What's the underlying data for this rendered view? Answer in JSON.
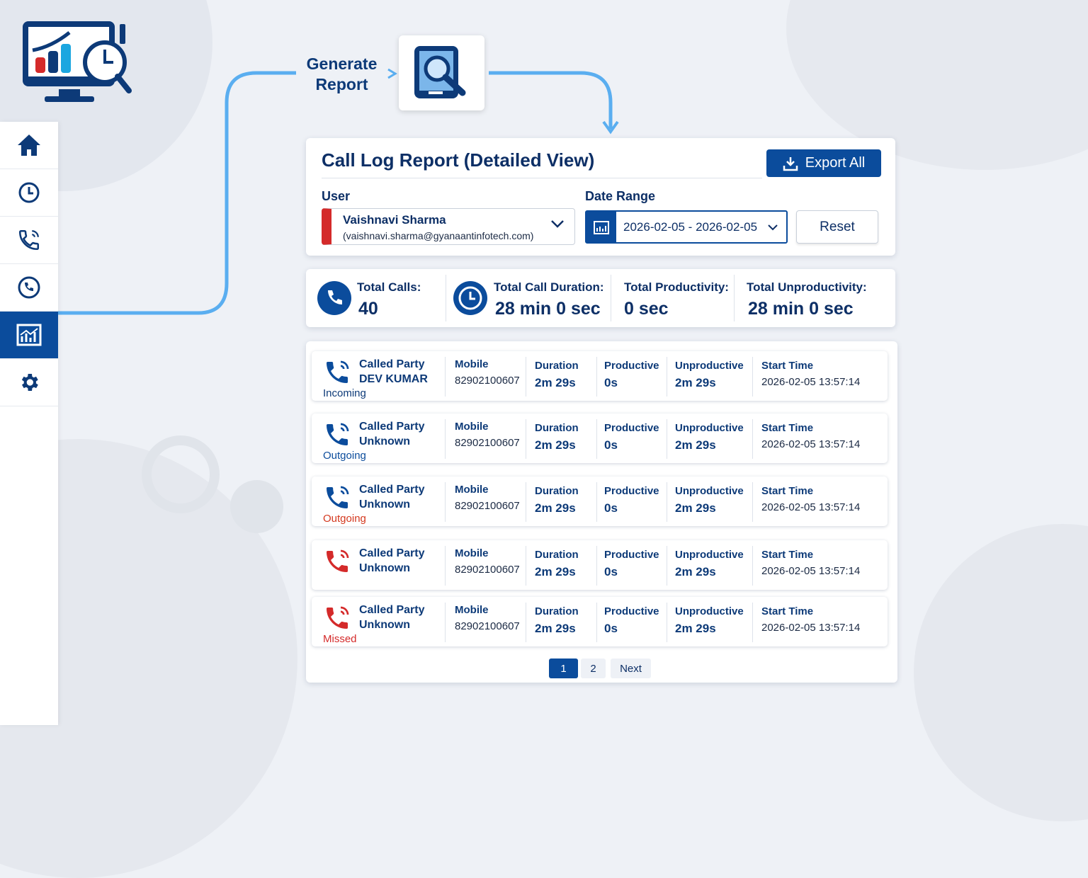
{
  "sidebar": {
    "items": [
      {
        "icon": "home-icon"
      },
      {
        "icon": "history-clock-icon"
      },
      {
        "icon": "phone-ringing-icon"
      },
      {
        "icon": "phone-icon"
      },
      {
        "icon": "report-chart-icon",
        "active": true
      },
      {
        "icon": "gear-icon"
      }
    ]
  },
  "flow": {
    "label": "Generate Report"
  },
  "header": {
    "title": "Call Log Report (Detailed View)",
    "export_label": "Export All",
    "user_label": "User",
    "user_name": "Vaishnavi Sharma",
    "user_email": "(vaishnavi.sharma@gyanaantinfotech.com)",
    "date_label": "Date Range",
    "date_value": "2026-02-05 - 2026-02-05",
    "reset_label": "Reset"
  },
  "stats": [
    {
      "label": "Total Calls:",
      "value": "40"
    },
    {
      "label": "Total Call Duration:",
      "value": "28 min 0 sec"
    },
    {
      "label": "Total Productivity:",
      "value": "0 sec"
    },
    {
      "label": "Total Unproductivity:",
      "value": "28 min 0 sec"
    }
  ],
  "columns": {
    "party": "Called Party",
    "mobile": "Mobile",
    "duration": "Duration",
    "productive": "Productive",
    "unproductive": "Unproductive",
    "start": "Start Time"
  },
  "rows": [
    {
      "party": "DEV KUMAR",
      "type": "Incoming",
      "type_color": "#0d3a78",
      "icon_color": "#0b4c9c",
      "mobile": "82902100607",
      "duration": "2m 29s",
      "productive": "0s",
      "unproductive": "2m 29s",
      "start": "2026-02-05 13:57:14"
    },
    {
      "party": "Unknown",
      "type": "Outgoing",
      "type_color": "#0b4c9c",
      "icon_color": "#0b4c9c",
      "mobile": "82902100607",
      "duration": "2m 29s",
      "productive": "0s",
      "unproductive": "2m 29s",
      "start": "2026-02-05 13:57:14"
    },
    {
      "party": "Unknown",
      "type": "Outgoing",
      "type_color": "#d4381e",
      "icon_color": "#0b4c9c",
      "mobile": "82902100607",
      "duration": "2m 29s",
      "productive": "0s",
      "unproductive": "2m 29s",
      "start": "2026-02-05 13:57:14"
    },
    {
      "party": "Unknown",
      "type": "",
      "type_color": "#d42a2a",
      "icon_color": "#d42a2a",
      "mobile": "82902100607",
      "duration": "2m 29s",
      "productive": "0s",
      "unproductive": "2m 29s",
      "start": "2026-02-05 13:57:14"
    },
    {
      "party": "Unknown",
      "type": "Missed",
      "type_color": "#d42a2a",
      "icon_color": "#d42a2a",
      "mobile": "82902100607",
      "duration": "2m 29s",
      "productive": "0s",
      "unproductive": "2m 29s",
      "start": "2026-02-05 13:57:14"
    }
  ],
  "pagination": {
    "pages": [
      "1",
      "2"
    ],
    "current": "1",
    "next": "Next"
  }
}
